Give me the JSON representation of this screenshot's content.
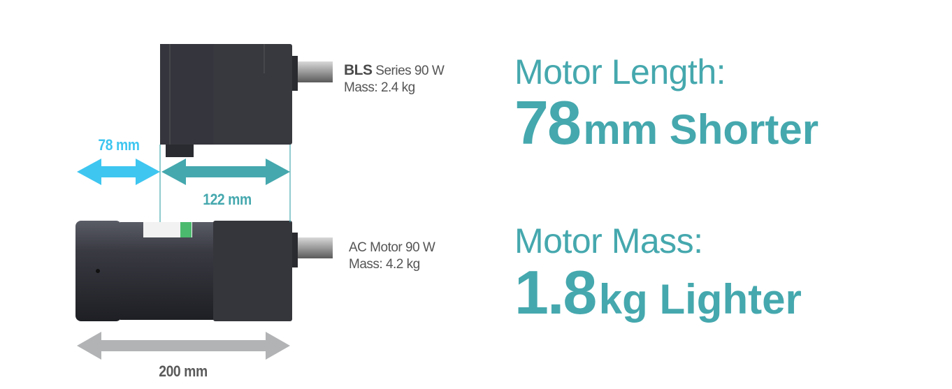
{
  "bls_motor": {
    "name_bold": "BLS",
    "name_rest": " Series 90 W",
    "mass": "Mass: 2.4 kg"
  },
  "ac_motor": {
    "name": "AC Motor 90 W",
    "mass": "Mass: 4.2 kg"
  },
  "dimensions": {
    "difference": "78 mm",
    "bls_length": "122 mm",
    "ac_length": "200 mm"
  },
  "length_claim": {
    "heading": "Motor Length:",
    "value": "78",
    "unit": "mm Shorter"
  },
  "mass_claim": {
    "heading": "Motor Mass:",
    "value": "1.8",
    "unit": "kg Lighter"
  },
  "colors": {
    "teal": "#45a8ae",
    "light_blue": "#3ec6f0",
    "gray_arrow": "#b2b3b5",
    "motor_body": "#2e2f35",
    "text": "#555555"
  }
}
